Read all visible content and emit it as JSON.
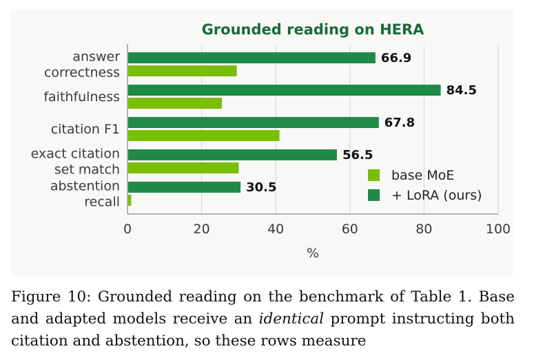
{
  "chart_data": {
    "type": "bar",
    "orientation": "horizontal",
    "title": "Grounded reading on HERA",
    "xlabel": "%",
    "ylabel": "",
    "xlim": [
      0,
      100
    ],
    "xticks": [
      "0",
      "20",
      "40",
      "60",
      "80",
      "100"
    ],
    "grid": "vertical",
    "legend_position": "lower-right",
    "categories": [
      [
        "answer",
        "correctness"
      ],
      [
        "faithfulness"
      ],
      [
        "citation F1"
      ],
      [
        "exact citation",
        "set match"
      ],
      [
        "abstention",
        "recall"
      ]
    ],
    "series": [
      {
        "name": "+ LoRA (ours)",
        "color": "#1f8a47",
        "values": [
          66.9,
          84.5,
          67.8,
          56.5,
          30.5
        ],
        "value_labels": [
          "66.9",
          "84.5",
          "67.8",
          "56.5",
          "30.5"
        ]
      },
      {
        "name": "base MoE",
        "color": "#79be06",
        "values": [
          29.5,
          25.5,
          41.0,
          30.0,
          1.0
        ]
      }
    ]
  },
  "caption": {
    "lead": "Figure 10: Grounded reading on the benchmark of Table 1. Base and adapted models receive an ",
    "emph": "identical",
    "tail": " prompt instructing both citation and abstention, so these rows measure"
  }
}
